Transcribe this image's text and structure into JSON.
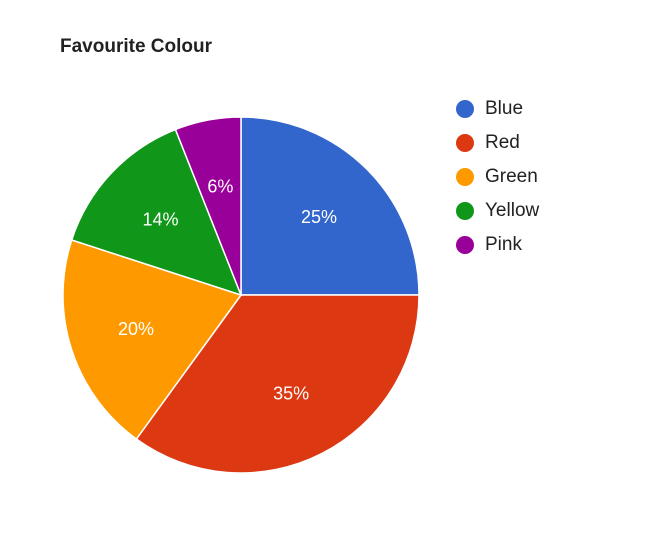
{
  "chart_data": {
    "type": "pie",
    "title": "Favourite Colour",
    "categories": [
      "Blue",
      "Red",
      "Green",
      "Yellow",
      "Pink"
    ],
    "values": [
      25,
      35,
      20,
      14,
      6
    ],
    "value_labels": [
      "25%",
      "35%",
      "20%",
      "14%",
      "6%"
    ],
    "colors": [
      "#3366cc",
      "#dc3912",
      "#ff9900",
      "#109618",
      "#990099"
    ],
    "legend_position": "right"
  }
}
